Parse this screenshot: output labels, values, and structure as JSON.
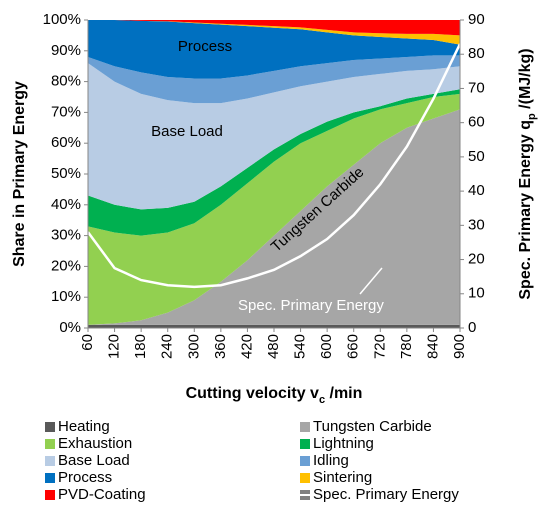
{
  "chart_data": {
    "type": "stacked_area",
    "ylabel": "Share in Primary Energy",
    "y2label": [
      "Spec. Primary Energy q",
      "p",
      " /(MJ/kg)"
    ],
    "xlabel": [
      "Cutting velocity v",
      "c",
      " /min"
    ],
    "x": [
      60,
      120,
      180,
      240,
      300,
      360,
      420,
      480,
      540,
      600,
      660,
      720,
      780,
      840,
      900
    ],
    "xlim": [
      60,
      900
    ],
    "ylim": [
      0,
      100
    ],
    "yticks": [
      {
        "value": 0,
        "label": "0%"
      },
      {
        "value": 10,
        "label": "10%"
      },
      {
        "value": 20,
        "label": "20%"
      },
      {
        "value": 30,
        "label": "30%"
      },
      {
        "value": 40,
        "label": "40%"
      },
      {
        "value": 50,
        "label": "50%"
      },
      {
        "value": 60,
        "label": "60%"
      },
      {
        "value": 70,
        "label": "70%"
      },
      {
        "value": 80,
        "label": "80%"
      },
      {
        "value": 90,
        "label": "90%"
      },
      {
        "value": 100,
        "label": "100%"
      }
    ],
    "y2lim": [
      0,
      90
    ],
    "y2ticks": [
      0,
      10,
      20,
      30,
      40,
      50,
      60,
      70,
      80,
      90
    ],
    "series": [
      {
        "name": "Heating",
        "color": "#595959",
        "values": [
          1,
          1,
          1,
          1,
          1,
          1,
          1,
          1,
          1,
          1,
          1,
          1,
          1,
          1,
          1
        ]
      },
      {
        "name": "Tungsten Carbide",
        "color": "#a6a6a6",
        "values": [
          0,
          0.5,
          1.5,
          4,
          8,
          14,
          21,
          29,
          37,
          45,
          52,
          59,
          64,
          67,
          70
        ]
      },
      {
        "name": "Exhaustion",
        "color": "#92d050",
        "values": [
          32,
          29.5,
          27.5,
          26,
          25,
          25,
          25,
          24,
          22,
          18,
          15,
          11,
          8,
          7,
          5
        ]
      },
      {
        "name": "Lightning",
        "color": "#00b050",
        "values": [
          10,
          9,
          8.5,
          8,
          7,
          6,
          5,
          4,
          3,
          3,
          2,
          1,
          1.5,
          1,
          1.5
        ]
      },
      {
        "name": "Base Load",
        "color": "#b8cce4",
        "values": [
          43,
          40,
          37.5,
          35,
          32,
          27,
          22.5,
          18.5,
          15.5,
          13,
          11.5,
          10.5,
          9,
          8,
          7.5
        ]
      },
      {
        "name": "Idling",
        "color": "#6a9fd4",
        "values": [
          2,
          5,
          7,
          7.5,
          8,
          8,
          7.5,
          7,
          6.5,
          6,
          5.5,
          5,
          4.5,
          4.5,
          3.5
        ]
      },
      {
        "name": "Process",
        "color": "#0070c0",
        "values": [
          12,
          15,
          16.7,
          18,
          18,
          17.5,
          16,
          14,
          12,
          10,
          8,
          7,
          6,
          5,
          3.5
        ]
      },
      {
        "name": "Sintering",
        "color": "#ffc000",
        "values": [
          0,
          0,
          0,
          0.1,
          0.2,
          0.3,
          0.4,
          0.5,
          0.6,
          0.8,
          1,
          1.2,
          1.5,
          2,
          3
        ]
      },
      {
        "name": "PVD-Coating",
        "color": "#ff0000",
        "values": [
          0,
          0,
          0.3,
          0.4,
          0.8,
          1.2,
          1.6,
          2,
          2.4,
          3.2,
          4,
          4.3,
          4.5,
          4.5,
          5
        ]
      },
      {
        "name": "Spec. Primary Energy",
        "color": "#ffffff",
        "type": "line",
        "axis": "y2",
        "values": [
          28,
          17.5,
          14,
          12.5,
          12,
          12.5,
          14.5,
          17,
          21,
          26,
          33,
          42,
          53,
          67,
          83
        ]
      }
    ],
    "annotations": [
      "Process",
      "Base Load",
      "Tungsten Carbide",
      "Spec. Primary Energy"
    ]
  }
}
